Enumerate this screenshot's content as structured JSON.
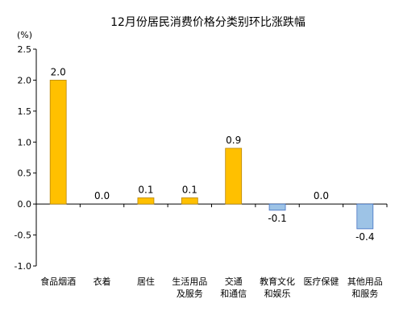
{
  "chart_data": {
    "type": "bar",
    "title": "12月份居民消费价格分类别环比涨跌幅",
    "unit": "(%)",
    "ylim": [
      -1.0,
      2.5
    ],
    "yticks": [
      "2.5",
      "2.0",
      "1.5",
      "1.0",
      "0.5",
      "0.0",
      "-0.5",
      "-1.0"
    ],
    "ytick_values": [
      2.5,
      2.0,
      1.5,
      1.0,
      0.5,
      0.0,
      -0.5,
      -1.0
    ],
    "grid": false,
    "legend": "none",
    "categories": [
      [
        "食品烟酒"
      ],
      [
        "衣着"
      ],
      [
        "居住"
      ],
      [
        "生活用品",
        "及服务"
      ],
      [
        "交通",
        "和通信"
      ],
      [
        "教育文化",
        "和娱乐"
      ],
      [
        "医疗保健"
      ],
      [
        "其他用品",
        "和服务"
      ]
    ],
    "values": [
      2.0,
      0.0,
      0.1,
      0.1,
      0.9,
      -0.1,
      0.0,
      -0.4
    ],
    "data_labels": [
      "2.0",
      "0.0",
      "0.1",
      "0.1",
      "0.9",
      "-0.1",
      "0.0",
      "-0.4"
    ],
    "colors": {
      "positive_fill": "#FFC000",
      "positive_stroke": "#B8860B",
      "negative_fill": "#9DC3E6",
      "negative_stroke": "#4472C4",
      "axis": "#000000"
    }
  }
}
